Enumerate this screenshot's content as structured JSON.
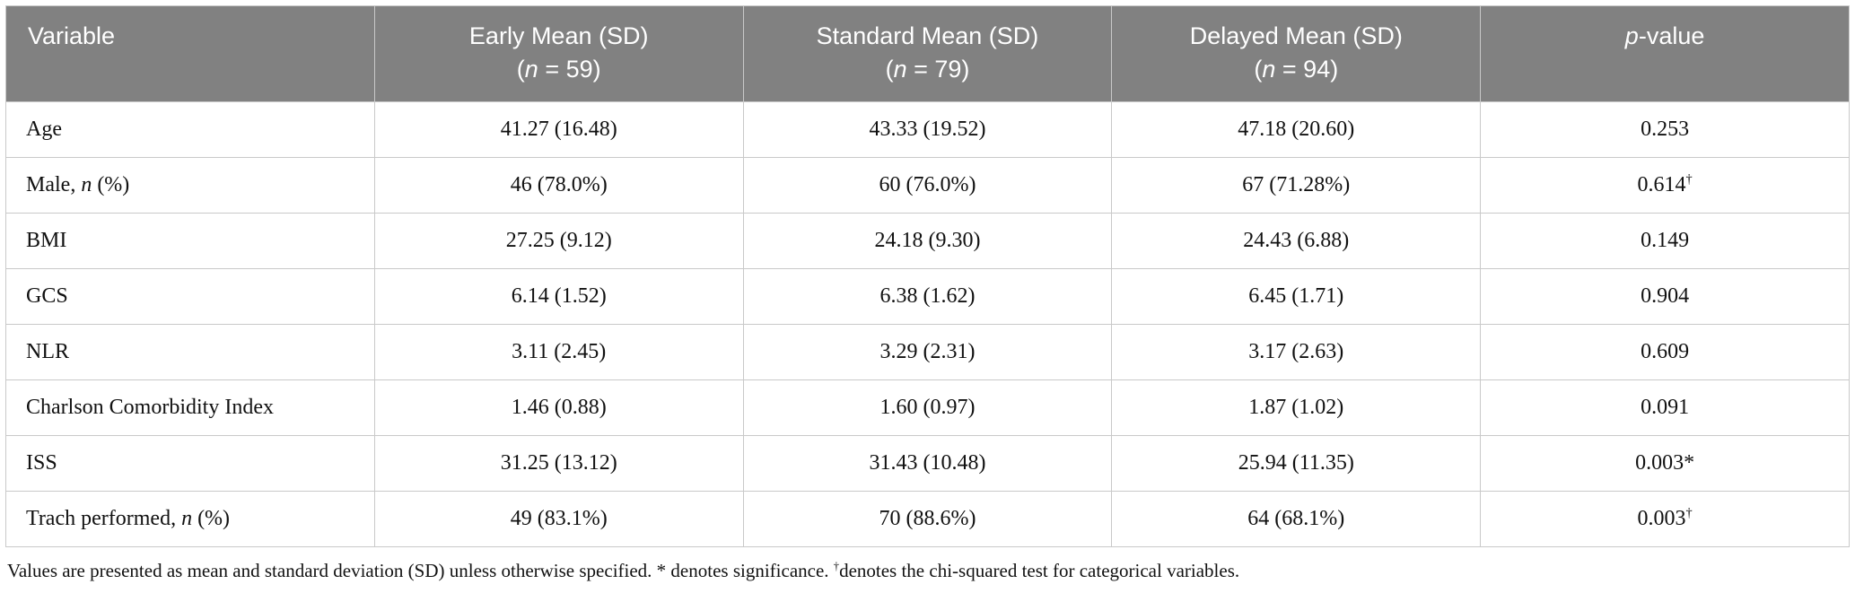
{
  "colors": {
    "header_bg": "#818181",
    "header_text": "#ffffff",
    "body_text": "#111111",
    "border": "#c9c9c9",
    "background": "#ffffff"
  },
  "table": {
    "header": {
      "variable": "Variable",
      "groups": [
        {
          "title": "Early Mean (SD)",
          "n_pre": "(",
          "n_italic": "n",
          "n_post": " = 59)"
        },
        {
          "title": "Standard Mean (SD)",
          "n_pre": "(",
          "n_italic": "n",
          "n_post": " = 79)"
        },
        {
          "title": "Delayed Mean (SD)",
          "n_pre": "(",
          "n_italic": "n",
          "n_post": " = 94)"
        }
      ],
      "p_italic": "p",
      "p_rest": "-value"
    },
    "rows": [
      {
        "label_pre": "Age",
        "label_it": "",
        "label_post": "",
        "early": "41.27 (16.48)",
        "standard": "43.33 (19.52)",
        "delayed": "47.18 (20.60)",
        "p": "0.253",
        "p_sup": "",
        "p_suffix": ""
      },
      {
        "label_pre": "Male, ",
        "label_it": "n",
        "label_post": " (%)",
        "early": "46 (78.0%)",
        "standard": "60 (76.0%)",
        "delayed": "67 (71.28%)",
        "p": "0.614",
        "p_sup": "†",
        "p_suffix": ""
      },
      {
        "label_pre": "BMI",
        "label_it": "",
        "label_post": "",
        "early": "27.25 (9.12)",
        "standard": "24.18 (9.30)",
        "delayed": "24.43 (6.88)",
        "p": "0.149",
        "p_sup": "",
        "p_suffix": ""
      },
      {
        "label_pre": "GCS",
        "label_it": "",
        "label_post": "",
        "early": "6.14 (1.52)",
        "standard": "6.38 (1.62)",
        "delayed": "6.45 (1.71)",
        "p": "0.904",
        "p_sup": "",
        "p_suffix": ""
      },
      {
        "label_pre": "NLR",
        "label_it": "",
        "label_post": "",
        "early": "3.11 (2.45)",
        "standard": "3.29 (2.31)",
        "delayed": "3.17 (2.63)",
        "p": "0.609",
        "p_sup": "",
        "p_suffix": ""
      },
      {
        "label_pre": "Charlson Comorbidity Index",
        "label_it": "",
        "label_post": "",
        "early": "1.46 (0.88)",
        "standard": "1.60 (0.97)",
        "delayed": "1.87 (1.02)",
        "p": "0.091",
        "p_sup": "",
        "p_suffix": ""
      },
      {
        "label_pre": "ISS",
        "label_it": "",
        "label_post": "",
        "early": "31.25 (13.12)",
        "standard": "31.43 (10.48)",
        "delayed": "25.94 (11.35)",
        "p": "0.003",
        "p_sup": "",
        "p_suffix": "*"
      },
      {
        "label_pre": "Trach performed, ",
        "label_it": "n",
        "label_post": " (%)",
        "early": "49 (83.1%)",
        "standard": "70 (88.6%)",
        "delayed": "64 (68.1%)",
        "p": "0.003",
        "p_sup": "†",
        "p_suffix": ""
      }
    ]
  },
  "footnote": {
    "part1": "Values are presented as mean and standard deviation (SD) unless otherwise specified. * denotes significance. ",
    "dagger": "†",
    "part2": "denotes the chi-squared test for categorical variables."
  }
}
